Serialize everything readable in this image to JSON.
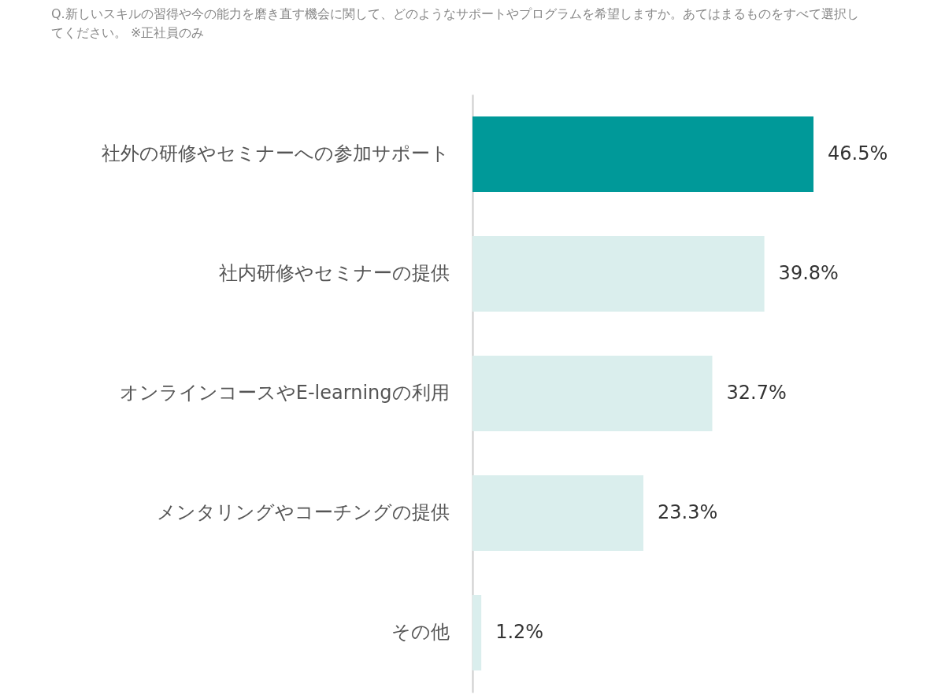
{
  "chart_data": {
    "type": "bar",
    "orientation": "horizontal",
    "title": "Q.新しいスキルの習得や今の能力を磨き直す機会に関して、どのようなサポートやプログラムを希望しますか。あてはまるものをすべて選択してください。 ※正社員のみ",
    "categories": [
      "社外の研修やセミナーへの参加サポート",
      "社内研修やセミナーの提供",
      "オンラインコースやE-learningの利用",
      "メンタリングやコーチングの提供",
      "その他"
    ],
    "values": [
      46.5,
      39.8,
      32.7,
      23.3,
      1.2
    ],
    "colors": [
      "#009999",
      "#daeeed",
      "#daeeed",
      "#daeeed",
      "#daeeed"
    ],
    "value_labels": [
      "46.5%",
      "39.8%",
      "32.7%",
      "23.3%",
      "1.2%"
    ],
    "tick_labels": "y"
  }
}
